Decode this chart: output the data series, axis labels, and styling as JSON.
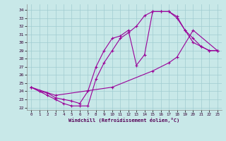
{
  "xlabel": "Windchill (Refroidissement éolien,°C)",
  "bg_color": "#c8e8e8",
  "grid_color": "#a0ccd0",
  "line_color": "#990099",
  "ylim": [
    21.7,
    34.7
  ],
  "xlim": [
    -0.5,
    23.5
  ],
  "yticks": [
    22,
    23,
    24,
    25,
    26,
    27,
    28,
    29,
    30,
    31,
    32,
    33,
    34
  ],
  "xticks": [
    0,
    1,
    2,
    3,
    4,
    5,
    6,
    7,
    8,
    9,
    10,
    11,
    12,
    13,
    14,
    15,
    16,
    17,
    18,
    19,
    20,
    21,
    22,
    23
  ],
  "lines": [
    {
      "x": [
        0,
        1,
        2,
        3,
        4,
        5,
        6,
        7,
        8,
        9,
        10,
        11,
        12,
        13,
        14,
        15,
        16,
        17,
        18,
        19,
        20,
        21,
        22,
        23
      ],
      "y": [
        24.5,
        24.0,
        23.5,
        23.0,
        22.5,
        22.2,
        22.2,
        22.2,
        25.5,
        27.5,
        29.0,
        30.5,
        31.2,
        32.0,
        33.3,
        33.8,
        33.8,
        33.8,
        33.2,
        31.5,
        30.5,
        29.5,
        29.0,
        29.0
      ]
    },
    {
      "x": [
        0,
        1,
        2,
        3,
        4,
        5,
        6,
        7,
        8,
        9,
        10,
        11,
        12,
        13,
        14,
        15,
        16,
        17,
        18,
        19,
        20,
        21,
        22,
        23
      ],
      "y": [
        24.5,
        24.0,
        23.8,
        23.2,
        23.0,
        22.8,
        22.5,
        24.0,
        27.0,
        29.0,
        30.5,
        30.8,
        31.5,
        27.2,
        28.5,
        33.8,
        33.8,
        33.8,
        33.0,
        31.5,
        30.0,
        29.5,
        29.0,
        29.0
      ]
    },
    {
      "x": [
        0,
        3,
        10,
        15,
        17,
        18,
        20,
        23
      ],
      "y": [
        24.5,
        23.5,
        24.5,
        26.5,
        27.5,
        28.2,
        31.5,
        29.0
      ]
    }
  ]
}
